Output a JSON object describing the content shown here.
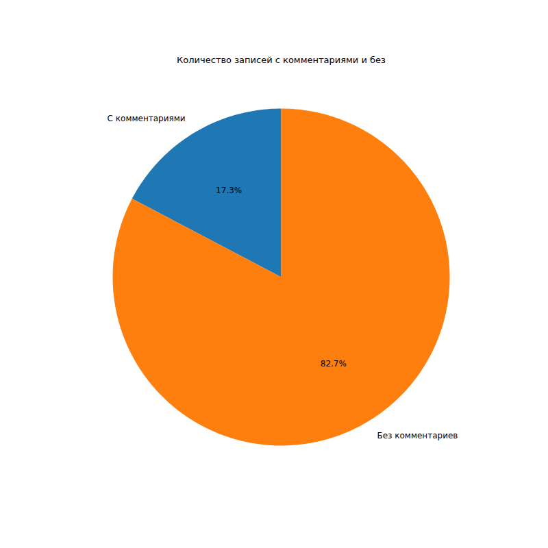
{
  "chart_data": {
    "type": "pie",
    "title": "Количество записей с комментариями и без",
    "categories": [
      "С комментариями",
      "Без комментариев"
    ],
    "values": [
      17.3,
      82.7
    ],
    "value_labels": [
      "17.3%",
      "82.7%"
    ],
    "colors": [
      "#1f77b4",
      "#ff7f0e"
    ],
    "data_labels": true,
    "tick_labels": false
  }
}
